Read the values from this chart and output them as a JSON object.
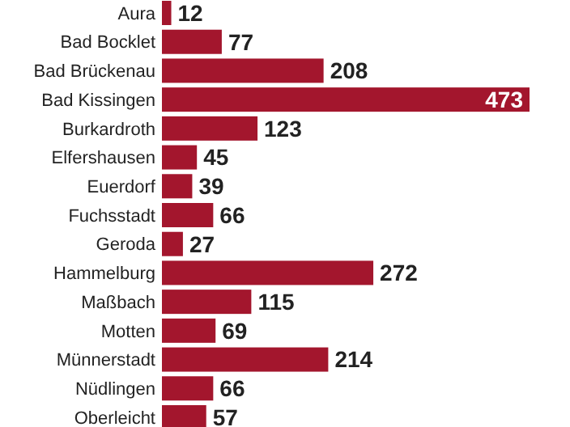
{
  "chart_data": {
    "type": "bar",
    "orientation": "horizontal",
    "categories": [
      "Aura",
      "Bad Bocklet",
      "Bad Brückenau",
      "Bad Kissingen",
      "Burkardroth",
      "Elfershausen",
      "Euerdorf",
      "Fuchsstadt",
      "Geroda",
      "Hammelburg",
      "Maßbach",
      "Motten",
      "Münnerstadt",
      "Nüdlingen",
      "Oberleicht"
    ],
    "values": [
      12,
      77,
      208,
      473,
      123,
      45,
      39,
      66,
      27,
      272,
      115,
      69,
      214,
      66,
      57
    ],
    "color": "#a3162d",
    "data_labels": true
  }
}
